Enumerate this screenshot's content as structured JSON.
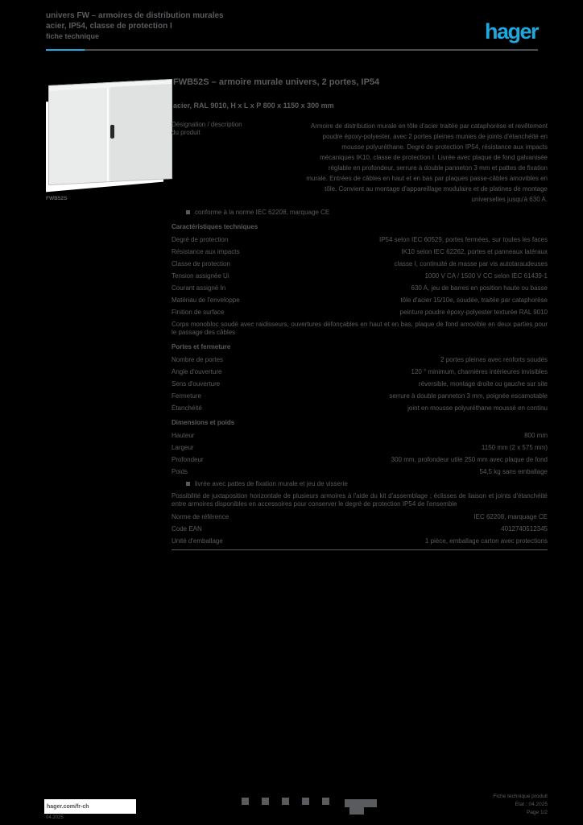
{
  "header": {
    "line1": "univers FW – armoires de distribution murales",
    "line2": "acier, IP54, classe de protection I",
    "line3": "fiche technique",
    "logo": "hager"
  },
  "colors": {
    "accent": "#1fa8e0",
    "text_gray": "#595b5e",
    "page_bg": "#000000"
  },
  "product": {
    "ref": "FWB52S",
    "title": "FWB52S – armoire murale univers, 2 portes, IP54",
    "subtitle": "acier, RAL 9010, H x L x P 800 x 1150 x 300 mm"
  },
  "table": {
    "rows": [
      {
        "t": "desig",
        "label": "Désignation / description du produit",
        "value": "Armoire de distribution murale en tôle d'acier traitée par cataphorèse et revêtement poudre époxy-polyester, avec 2 portes pleines munies de joints d'étanchéité en mousse polyuréthane. Degré de protection IP54, résistance aux impacts mécaniques IK10, classe de protection I. Livrée avec plaque de fond galvanisée réglable en profondeur, serrure à double panneton 3 mm et pattes de fixation murale. Entrées de câbles en haut et en bas par plaques passe-câbles amovibles en tôle. Convient au montage d'appareillage modulaire et de platines de montage universelles jusqu'à 630 A."
      },
      {
        "t": "bullet",
        "text": "conforme à la norme IEC 62208, marquage CE"
      },
      {
        "t": "head",
        "text": "Caractéristiques techniques"
      },
      {
        "t": "row",
        "label": "Degré de protection",
        "value": "IP54 selon IEC 60529, portes fermées, sur toutes les faces"
      },
      {
        "t": "row",
        "label": "Résistance aux impacts",
        "value": "IK10 selon IEC 62262, portes et panneaux latéraux"
      },
      {
        "t": "row",
        "label": "Classe de protection",
        "value": "classe I, continuité de masse par vis autotaraudeuses"
      },
      {
        "t": "row",
        "label": "Tension assignée Ui",
        "value": "1000 V CA / 1500 V CC selon IEC 61439-1"
      },
      {
        "t": "row",
        "label": "Courant assigné In",
        "value": "630 A, jeu de barres en position haute ou basse"
      },
      {
        "t": "row",
        "label": "Matériau de l'enveloppe",
        "value": "tôle d'acier 15/10e, soudée, traitée par cataphorèse"
      },
      {
        "t": "row",
        "label": "Finition de surface",
        "value": "peinture poudre époxy-polyester texturée RAL 9010"
      },
      {
        "t": "para",
        "text": "Corps monobloc soudé avec raidisseurs, ouvertures défonçables en haut et en bas, plaque de fond amovible en deux parties pour le passage des câbles"
      },
      {
        "t": "head",
        "text": "Portes et fermeture"
      },
      {
        "t": "row",
        "label": "Nombre de portes",
        "value": "2 portes pleines avec renforts soudés"
      },
      {
        "t": "row",
        "label": "Angle d'ouverture",
        "value": "120 ° minimum, charnières intérieures invisibles"
      },
      {
        "t": "row",
        "label": "Sens d'ouverture",
        "value": "réversible, montage droite ou gauche sur site"
      },
      {
        "t": "row",
        "label": "Fermeture",
        "value": "serrure à double panneton 3 mm, poignée escamotable"
      },
      {
        "t": "row",
        "label": "Étanchéité",
        "value": "joint en mousse polyuréthane moussé en continu"
      },
      {
        "t": "head",
        "text": "Dimensions et poids"
      },
      {
        "t": "row",
        "label": "Hauteur",
        "value": "800 mm"
      },
      {
        "t": "row",
        "label": "Largeur",
        "value": "1150 mm (2 x 575 mm)"
      },
      {
        "t": "row",
        "label": "Profondeur",
        "value": "300 mm, profondeur utile 250 mm avec plaque de fond"
      },
      {
        "t": "row",
        "label": "Poids",
        "value": "54,5 kg sans emballage"
      },
      {
        "t": "bullet",
        "text": "livrée avec pattes de fixation murale et jeu de visserie"
      },
      {
        "t": "para",
        "text": "Possibilité de juxtaposition horizontale de plusieurs armoires à l'aide du kit d'assemblage ; éclisses de liaison et joints d'étanchéité entre armoires disponibles en accessoires pour conserver le degré de protection IP54 de l'ensemble"
      },
      {
        "t": "row",
        "label": "Norme de référence",
        "value": "IEC 62208, marquage CE"
      },
      {
        "t": "row",
        "label": "Code EAN",
        "value": "4012740512345"
      },
      {
        "t": "row",
        "label": "Unité d'emballage",
        "value": "1 pièce, emballage carton avec protections"
      },
      {
        "t": "rule"
      }
    ]
  },
  "footer": {
    "site": "hager.com/fr-ch",
    "date": "04.2025",
    "icons": [
      {
        "name": "footer-link-icon-1"
      },
      {
        "name": "footer-link-icon-2"
      },
      {
        "name": "footer-link-icon-3"
      },
      {
        "name": "footer-link-icon-4"
      },
      {
        "name": "footer-link-icon-5"
      }
    ],
    "right_lines": [
      "Fiche technique produit",
      "Etat : 04.2025",
      "Page 1/2"
    ]
  }
}
